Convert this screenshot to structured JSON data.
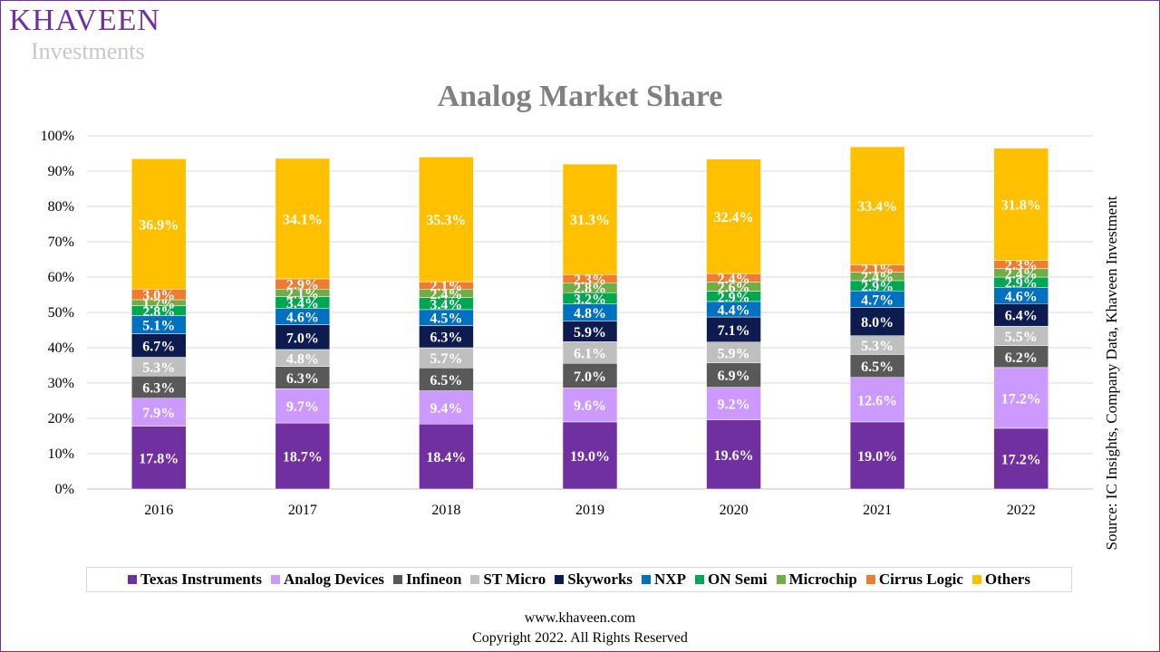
{
  "logo": {
    "main": "KHAVEEN",
    "sub": "Investments"
  },
  "source_text": "Source: IC Insights, Company Data, Khaveen Investment",
  "footer": {
    "url": "www.khaveen.com",
    "copyright": "Copyright 2022. All Rights Reserved"
  },
  "chart_data": {
    "type": "bar",
    "stacked": true,
    "title": "Analog Market Share",
    "xlabel": "",
    "ylabel": "",
    "ylim": [
      0,
      100
    ],
    "y_ticks": [
      "0%",
      "10%",
      "20%",
      "30%",
      "40%",
      "50%",
      "60%",
      "70%",
      "80%",
      "90%",
      "100%"
    ],
    "grid": true,
    "legend_position": "bottom",
    "categories": [
      "2016",
      "2017",
      "2018",
      "2019",
      "2020",
      "2021",
      "2022"
    ],
    "series": [
      {
        "name": "Texas Instruments",
        "color": "#7030a0",
        "values": [
          17.8,
          18.7,
          18.4,
          19.0,
          19.6,
          19.0,
          17.2
        ]
      },
      {
        "name": "Analog Devices",
        "color": "#cc99ff",
        "values": [
          7.9,
          9.7,
          9.4,
          9.6,
          9.2,
          12.6,
          17.2
        ]
      },
      {
        "name": "Infineon",
        "color": "#595959",
        "values": [
          6.3,
          6.3,
          6.5,
          7.0,
          6.9,
          6.5,
          6.2
        ]
      },
      {
        "name": "ST Micro",
        "color": "#bfbfbf",
        "values": [
          5.3,
          4.8,
          5.7,
          6.1,
          5.9,
          5.3,
          5.5
        ]
      },
      {
        "name": "Skyworks",
        "color": "#0d1b4f",
        "values": [
          6.7,
          7.0,
          6.3,
          5.9,
          7.1,
          8.0,
          6.4
        ]
      },
      {
        "name": "NXP",
        "color": "#0070c0",
        "values": [
          5.1,
          4.6,
          4.5,
          4.8,
          4.4,
          4.7,
          4.6
        ]
      },
      {
        "name": "ON Semi",
        "color": "#00a651",
        "values": [
          2.8,
          3.4,
          3.4,
          3.2,
          2.9,
          2.9,
          2.9
        ]
      },
      {
        "name": "Microchip",
        "color": "#70ad47",
        "values": [
          1.7,
          2.1,
          2.4,
          2.8,
          2.6,
          2.4,
          2.4
        ]
      },
      {
        "name": "Cirrus Logic",
        "color": "#ed7d31",
        "values": [
          3.0,
          2.9,
          2.1,
          2.3,
          2.4,
          2.1,
          2.3
        ]
      },
      {
        "name": "Others",
        "color": "#ffc000",
        "values": [
          36.9,
          34.1,
          35.3,
          31.3,
          32.4,
          33.4,
          31.8
        ]
      }
    ]
  }
}
